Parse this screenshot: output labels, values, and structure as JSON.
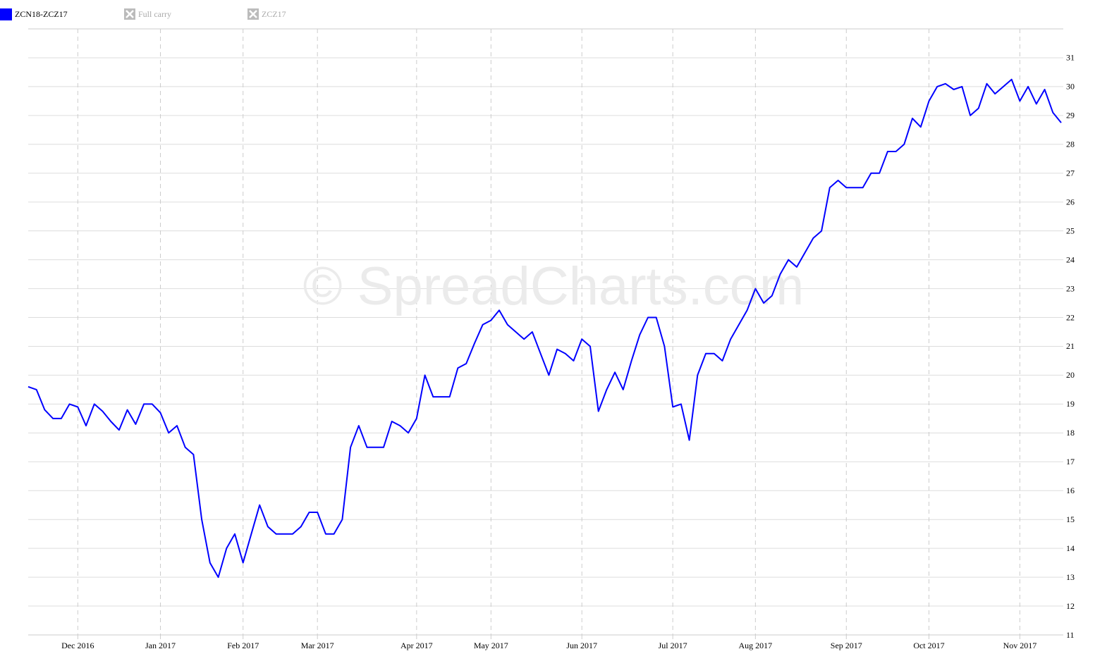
{
  "chart_data": {
    "type": "line",
    "watermark": "© SpreadCharts.com",
    "hidden_series": [
      "Full carry",
      "ZCZ17"
    ],
    "categories": [
      null,
      null,
      null,
      null,
      null,
      null,
      "Dec 2016",
      null,
      null,
      null,
      null,
      null,
      null,
      null,
      null,
      null,
      "Jan 2017",
      null,
      null,
      null,
      null,
      null,
      null,
      null,
      null,
      null,
      "Feb 2017",
      null,
      null,
      null,
      null,
      null,
      null,
      null,
      null,
      "Mar 2017",
      null,
      null,
      null,
      null,
      null,
      null,
      null,
      null,
      null,
      null,
      null,
      "Apr 2017",
      null,
      null,
      null,
      null,
      null,
      null,
      null,
      null,
      "May 2017",
      null,
      null,
      null,
      null,
      null,
      null,
      null,
      null,
      null,
      null,
      "Jun 2017",
      null,
      null,
      null,
      null,
      null,
      null,
      null,
      null,
      null,
      null,
      "Jul 2017",
      null,
      null,
      null,
      null,
      null,
      null,
      null,
      null,
      null,
      "Aug 2017",
      null,
      null,
      null,
      null,
      null,
      null,
      null,
      null,
      null,
      null,
      "Sep 2017",
      null,
      null,
      null,
      null,
      null,
      null,
      null,
      null,
      null,
      "Oct 2017",
      null,
      null,
      null,
      null,
      null,
      null,
      null,
      null,
      null,
      null,
      "Nov 2017",
      null,
      null,
      null,
      null,
      null
    ],
    "series": [
      {
        "name": "ZCN18-ZCZ17",
        "color": "#0000ff",
        "values": [
          19.6,
          19.5,
          18.8,
          18.5,
          18.5,
          19.0,
          18.9,
          18.25,
          19.0,
          18.75,
          18.4,
          18.1,
          18.8,
          18.3,
          19.0,
          19.0,
          18.7,
          18.0,
          18.25,
          17.5,
          17.25,
          15.0,
          13.5,
          13.0,
          14.0,
          14.5,
          13.5,
          14.5,
          15.5,
          14.75,
          14.5,
          14.5,
          14.5,
          14.75,
          15.25,
          15.25,
          14.5,
          14.5,
          15.0,
          17.5,
          18.25,
          17.5,
          17.5,
          17.5,
          18.4,
          18.25,
          18.0,
          18.5,
          20.0,
          19.25,
          19.25,
          19.25,
          20.25,
          20.4,
          21.1,
          21.75,
          21.9,
          22.25,
          21.75,
          21.5,
          21.25,
          21.5,
          20.75,
          20.0,
          20.9,
          20.75,
          20.5,
          21.25,
          21.0,
          18.75,
          19.5,
          20.1,
          19.5,
          20.5,
          21.4,
          22.0,
          22.0,
          21.0,
          18.9,
          19.0,
          17.75,
          20.0,
          20.75,
          20.75,
          20.5,
          21.25,
          21.75,
          22.25,
          23.0,
          22.5,
          22.75,
          23.5,
          24.0,
          23.75,
          24.25,
          24.75,
          25.0,
          26.5,
          26.75,
          26.5,
          26.5,
          26.5,
          27.0,
          27.0,
          27.75,
          27.75,
          28.0,
          28.9,
          28.6,
          29.5,
          30.0,
          30.1,
          29.9,
          30.0,
          29.0,
          29.25,
          30.1,
          29.75,
          30.0,
          30.25,
          29.5,
          30.0,
          29.4,
          29.9,
          29.1,
          28.75
        ]
      }
    ],
    "ylim": [
      11,
      32
    ],
    "yticks": [
      11,
      12,
      13,
      14,
      15,
      16,
      17,
      18,
      19,
      20,
      21,
      22,
      23,
      24,
      25,
      26,
      27,
      28,
      29,
      30,
      31
    ],
    "grid": true
  }
}
